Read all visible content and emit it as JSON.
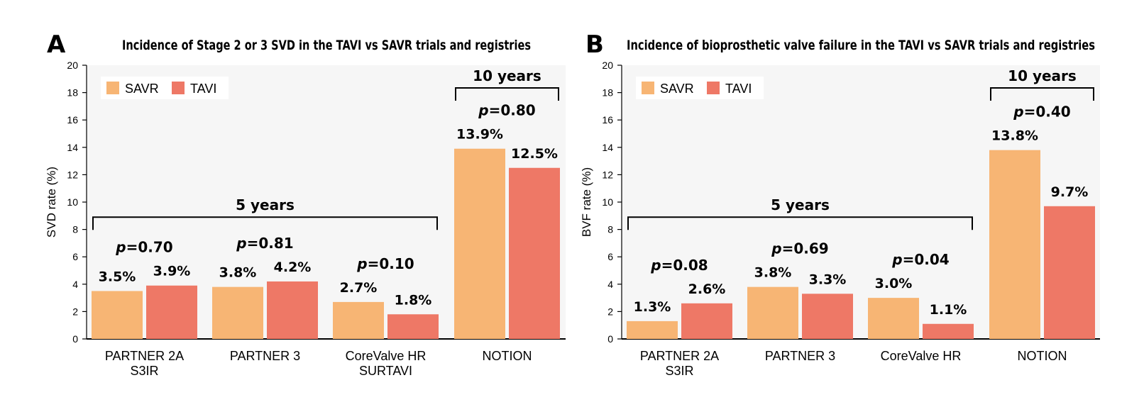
{
  "colors": {
    "SAVR": "#F7B574",
    "TAVI": "#EE7866",
    "plot_bg": "#F6F6F6"
  },
  "chart_data": [
    {
      "panel": "A",
      "type": "bar",
      "title": "Incidence of Stage 2 or 3 SVD in the TAVI vs SAVR trials and registries",
      "xlabel": "",
      "ylabel": "SVD rate (%)",
      "ylim": [
        0,
        20
      ],
      "yticks": [
        0,
        2,
        4,
        6,
        8,
        10,
        12,
        14,
        16,
        18,
        20
      ],
      "grid": false,
      "legend": "top-left",
      "categories": [
        [
          "PARTNER 2A",
          "S3IR"
        ],
        [
          "PARTNER 3"
        ],
        [
          "CoreValve HR",
          "SURTAVI"
        ],
        [
          "NOTION"
        ]
      ],
      "series": [
        {
          "name": "SAVR",
          "values": [
            3.5,
            3.8,
            2.7,
            13.9
          ],
          "labels": [
            "3.5%",
            "3.8%",
            "2.7%",
            "13.9%"
          ]
        },
        {
          "name": "TAVI",
          "values": [
            3.9,
            4.2,
            1.8,
            12.5
          ],
          "labels": [
            "3.9%",
            "4.2%",
            "1.8%",
            "12.5%"
          ]
        }
      ],
      "p_values": [
        "0.70",
        "0.81",
        "0.10",
        "0.80"
      ],
      "p_prefix": "p",
      "p_eq": "=",
      "groupings": [
        {
          "label": "5 years",
          "from": 0,
          "to": 2
        },
        {
          "label": "10 years",
          "from": 3,
          "to": 3
        }
      ]
    },
    {
      "panel": "B",
      "type": "bar",
      "title": "Incidence of bioprosthetic valve failure in the TAVI vs SAVR trials and registries",
      "xlabel": "",
      "ylabel": "BVF rate (%)",
      "ylim": [
        0,
        20
      ],
      "yticks": [
        0,
        2,
        4,
        6,
        8,
        10,
        12,
        14,
        16,
        18,
        20
      ],
      "grid": false,
      "legend": "top-left",
      "categories": [
        [
          "PARTNER 2A",
          "S3IR"
        ],
        [
          "PARTNER 3"
        ],
        [
          "CoreValve HR"
        ],
        [
          "NOTION"
        ]
      ],
      "series": [
        {
          "name": "SAVR",
          "values": [
            1.3,
            3.8,
            3.0,
            13.8
          ],
          "labels": [
            "1.3%",
            "3.8%",
            "3.0%",
            "13.8%"
          ]
        },
        {
          "name": "TAVI",
          "values": [
            2.6,
            3.3,
            1.1,
            9.7
          ],
          "labels": [
            "2.6%",
            "3.3%",
            "1.1%",
            "9.7%"
          ]
        }
      ],
      "p_values": [
        "0.08",
        "0.69",
        "0.04",
        "0.40"
      ],
      "p_prefix": "p",
      "p_eq": "=",
      "groupings": [
        {
          "label": "5 years",
          "from": 0,
          "to": 2
        },
        {
          "label": "10 years",
          "from": 3,
          "to": 3
        }
      ]
    }
  ]
}
